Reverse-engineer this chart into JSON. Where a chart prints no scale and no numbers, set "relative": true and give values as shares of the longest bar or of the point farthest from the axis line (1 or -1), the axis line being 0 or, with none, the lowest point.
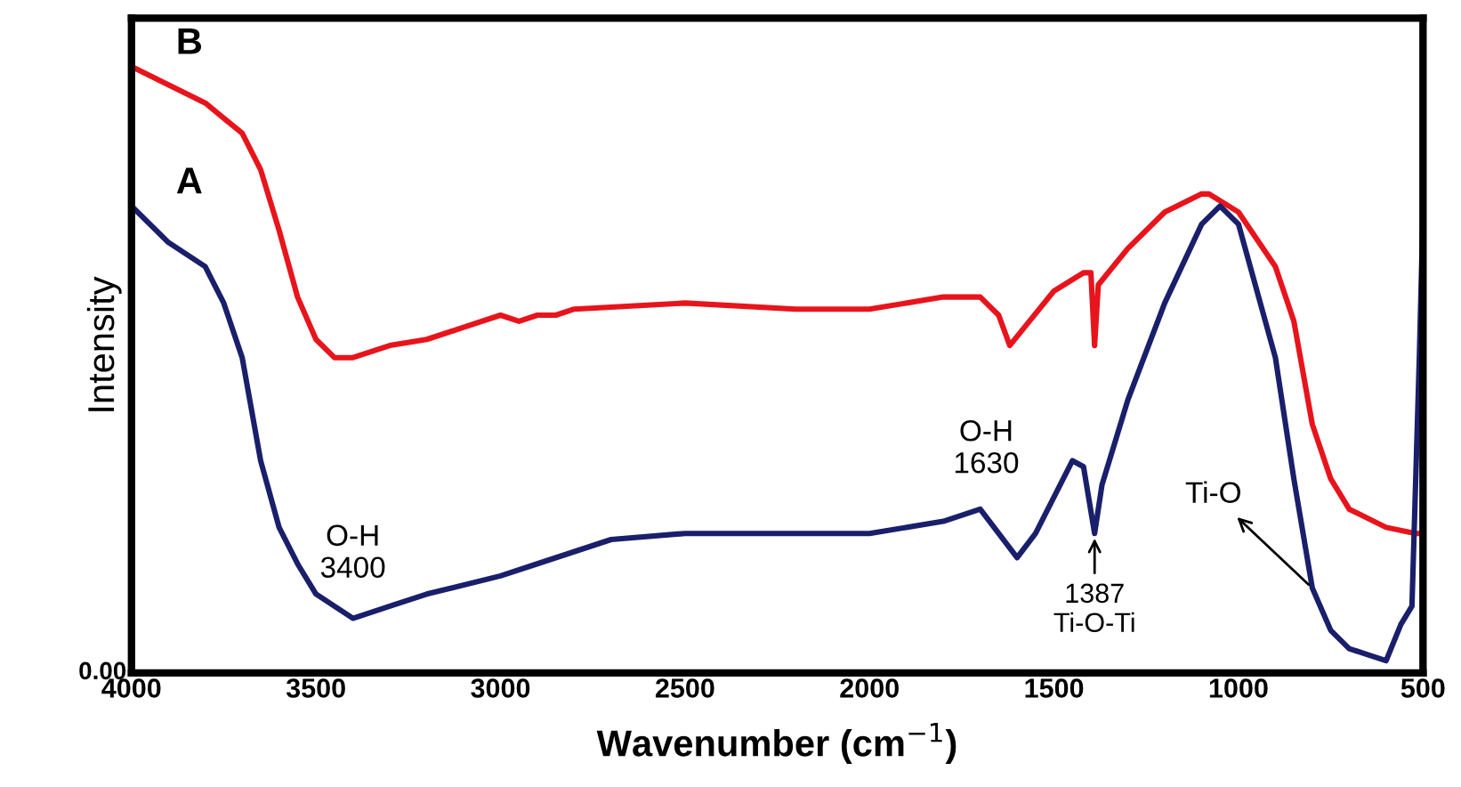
{
  "chart_data": {
    "type": "line",
    "relative": true,
    "xlabel": "Wavenumber (cm$^{−1}$)",
    "ylabel": "Intensity",
    "xlim": [
      4000,
      500
    ],
    "xticks": [
      4000,
      3500,
      3000,
      2500,
      2000,
      1500,
      1000,
      500
    ],
    "grid": false,
    "legend": false,
    "marker": "none",
    "line_style": "solid",
    "series": [
      {
        "name": "B",
        "color": "#e8141c",
        "x": [
          4000,
          3900,
          3800,
          3700,
          3650,
          3600,
          3550,
          3500,
          3450,
          3400,
          3300,
          3200,
          3100,
          3000,
          2950,
          2900,
          2850,
          2800,
          2500,
          2200,
          2000,
          1800,
          1700,
          1650,
          1620,
          1580,
          1500,
          1420,
          1400,
          1390,
          1380,
          1300,
          1200,
          1100,
          1080,
          1000,
          900,
          850,
          800,
          750,
          700,
          600,
          520,
          500
        ],
        "values": [
          1.0,
          0.97,
          0.94,
          0.89,
          0.83,
          0.73,
          0.62,
          0.55,
          0.52,
          0.52,
          0.54,
          0.55,
          0.57,
          0.59,
          0.58,
          0.59,
          0.59,
          0.6,
          0.61,
          0.6,
          0.6,
          0.62,
          0.62,
          0.59,
          0.54,
          0.57,
          0.63,
          0.66,
          0.66,
          0.54,
          0.64,
          0.7,
          0.76,
          0.79,
          0.79,
          0.76,
          0.67,
          0.58,
          0.41,
          0.32,
          0.27,
          0.24,
          0.23,
          0.23
        ]
      },
      {
        "name": "A",
        "color": "#1a1f6b",
        "x": [
          4000,
          3900,
          3800,
          3750,
          3700,
          3650,
          3600,
          3550,
          3500,
          3400,
          3300,
          3200,
          3000,
          2900,
          2700,
          2500,
          2300,
          2000,
          1800,
          1700,
          1650,
          1600,
          1550,
          1450,
          1420,
          1390,
          1370,
          1300,
          1200,
          1100,
          1050,
          1000,
          900,
          850,
          800,
          750,
          700,
          650,
          600,
          560,
          530,
          510,
          500
        ],
        "values": [
          0.77,
          0.71,
          0.67,
          0.61,
          0.52,
          0.35,
          0.24,
          0.18,
          0.13,
          0.09,
          0.11,
          0.13,
          0.16,
          0.18,
          0.22,
          0.23,
          0.23,
          0.23,
          0.25,
          0.27,
          0.23,
          0.19,
          0.23,
          0.35,
          0.34,
          0.23,
          0.31,
          0.45,
          0.61,
          0.74,
          0.77,
          0.74,
          0.52,
          0.32,
          0.14,
          0.07,
          0.04,
          0.03,
          0.02,
          0.08,
          0.11,
          0.52,
          0.76
        ]
      }
    ],
    "annotations": [
      {
        "text": "O-H\n3400",
        "x": 3400,
        "y": 0.09
      },
      {
        "text": "O-H\n1630",
        "x": 1630,
        "y": 0.23
      },
      {
        "text": "1387\nTi-O-Ti",
        "x": 1390,
        "y": 0.23
      },
      {
        "text": "Ti-O",
        "x": 800,
        "y": 0.14
      },
      "0.00"
    ]
  }
}
